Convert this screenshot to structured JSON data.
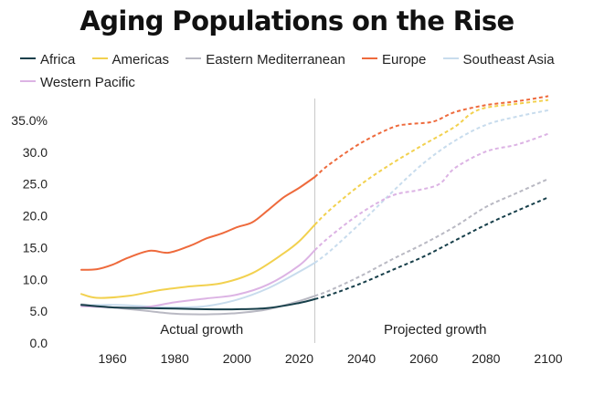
{
  "chart_data": {
    "type": "line",
    "title": "Aging Populations on the Rise",
    "xlabel": "",
    "ylabel": "",
    "xlim": [
      1950,
      2100
    ],
    "ylim": [
      0,
      37
    ],
    "divider_year": 2025,
    "x_ticks": [
      1960,
      1980,
      2000,
      2020,
      2040,
      2060,
      2080,
      2100
    ],
    "x_tick_labels": [
      "1960",
      "1980",
      "2000",
      "2020",
      "2040",
      "2060",
      "2080",
      "2100"
    ],
    "y_ticks": [
      0,
      5,
      10,
      15,
      20,
      25,
      30,
      35
    ],
    "y_tick_labels": [
      "0.0",
      "5.0",
      "10.0",
      "15.0",
      "20.0",
      "25.0",
      "30.0",
      "35.0%"
    ],
    "annotations": {
      "actual": "Actual growth",
      "projected": "Projected growth"
    },
    "series": [
      {
        "name": "Africa",
        "color": "#173f4a",
        "actual": [
          [
            1950,
            6.0
          ],
          [
            1960,
            5.6
          ],
          [
            1970,
            5.5
          ],
          [
            1980,
            5.4
          ],
          [
            1990,
            5.3
          ],
          [
            2000,
            5.3
          ],
          [
            2010,
            5.5
          ],
          [
            2020,
            6.3
          ],
          [
            2025,
            6.9
          ]
        ],
        "projected": [
          [
            2025,
            6.9
          ],
          [
            2030,
            7.6
          ],
          [
            2040,
            9.4
          ],
          [
            2050,
            11.5
          ],
          [
            2060,
            13.6
          ],
          [
            2070,
            16.1
          ],
          [
            2080,
            18.6
          ],
          [
            2090,
            20.8
          ],
          [
            2100,
            22.9
          ]
        ]
      },
      {
        "name": "Americas",
        "color": "#f2d14f",
        "actual": [
          [
            1950,
            7.7
          ],
          [
            1955,
            7.1
          ],
          [
            1965,
            7.4
          ],
          [
            1975,
            8.3
          ],
          [
            1985,
            8.9
          ],
          [
            1995,
            9.4
          ],
          [
            2005,
            11.0
          ],
          [
            2015,
            14.1
          ],
          [
            2020,
            16.0
          ],
          [
            2025,
            18.6
          ]
        ],
        "projected": [
          [
            2025,
            18.6
          ],
          [
            2030,
            21.0
          ],
          [
            2040,
            25.0
          ],
          [
            2050,
            28.3
          ],
          [
            2060,
            31.2
          ],
          [
            2070,
            34.0
          ],
          [
            2075,
            36.0
          ],
          [
            2080,
            37.0
          ],
          [
            2090,
            37.6
          ],
          [
            2100,
            38.2
          ]
        ]
      },
      {
        "name": "Eastern Mediterranean",
        "color": "#b9b9c3",
        "actual": [
          [
            1950,
            6.1
          ],
          [
            1960,
            5.6
          ],
          [
            1970,
            5.1
          ],
          [
            1980,
            4.6
          ],
          [
            1990,
            4.5
          ],
          [
            2000,
            4.7
          ],
          [
            2010,
            5.3
          ],
          [
            2020,
            6.6
          ],
          [
            2025,
            7.4
          ]
        ],
        "projected": [
          [
            2025,
            7.4
          ],
          [
            2030,
            8.3
          ],
          [
            2040,
            10.6
          ],
          [
            2050,
            13.2
          ],
          [
            2060,
            15.6
          ],
          [
            2070,
            18.3
          ],
          [
            2080,
            21.4
          ],
          [
            2090,
            23.6
          ],
          [
            2100,
            25.8
          ]
        ]
      },
      {
        "name": "Europe",
        "color": "#ee6a3c",
        "actual": [
          [
            1950,
            11.5
          ],
          [
            1955,
            11.6
          ],
          [
            1960,
            12.3
          ],
          [
            1965,
            13.4
          ],
          [
            1972,
            14.5
          ],
          [
            1978,
            14.2
          ],
          [
            1985,
            15.3
          ],
          [
            1990,
            16.4
          ],
          [
            1995,
            17.2
          ],
          [
            2000,
            18.2
          ],
          [
            2005,
            19.0
          ],
          [
            2010,
            20.9
          ],
          [
            2015,
            22.9
          ],
          [
            2020,
            24.4
          ],
          [
            2025,
            26.1
          ]
        ],
        "projected": [
          [
            2025,
            26.1
          ],
          [
            2030,
            28.2
          ],
          [
            2040,
            31.5
          ],
          [
            2050,
            33.9
          ],
          [
            2055,
            34.4
          ],
          [
            2063,
            34.8
          ],
          [
            2070,
            36.3
          ],
          [
            2080,
            37.4
          ],
          [
            2090,
            38.0
          ],
          [
            2100,
            38.8
          ]
        ]
      },
      {
        "name": "Southeast Asia",
        "color": "#c8dced",
        "actual": [
          [
            1950,
            5.9
          ],
          [
            1960,
            6.0
          ],
          [
            1970,
            5.8
          ],
          [
            1980,
            5.6
          ],
          [
            1990,
            5.8
          ],
          [
            2000,
            6.8
          ],
          [
            2010,
            8.6
          ],
          [
            2020,
            11.2
          ],
          [
            2025,
            12.6
          ]
        ],
        "projected": [
          [
            2025,
            12.6
          ],
          [
            2030,
            14.5
          ],
          [
            2040,
            19.0
          ],
          [
            2050,
            23.8
          ],
          [
            2060,
            28.3
          ],
          [
            2070,
            31.8
          ],
          [
            2080,
            34.3
          ],
          [
            2090,
            35.6
          ],
          [
            2100,
            36.6
          ]
        ]
      },
      {
        "name": "Western Pacific",
        "color": "#dcb3e4",
        "actual": [
          [
            1950,
            5.8
          ],
          [
            1960,
            5.6
          ],
          [
            1970,
            5.6
          ],
          [
            1980,
            6.4
          ],
          [
            1990,
            7.0
          ],
          [
            2000,
            7.6
          ],
          [
            2010,
            9.2
          ],
          [
            2020,
            12.2
          ],
          [
            2025,
            14.6
          ]
        ],
        "projected": [
          [
            2025,
            14.6
          ],
          [
            2030,
            16.8
          ],
          [
            2040,
            20.5
          ],
          [
            2050,
            23.2
          ],
          [
            2058,
            24.0
          ],
          [
            2065,
            25.0
          ],
          [
            2070,
            27.5
          ],
          [
            2080,
            30.1
          ],
          [
            2090,
            31.2
          ],
          [
            2100,
            32.9
          ]
        ]
      }
    ]
  }
}
